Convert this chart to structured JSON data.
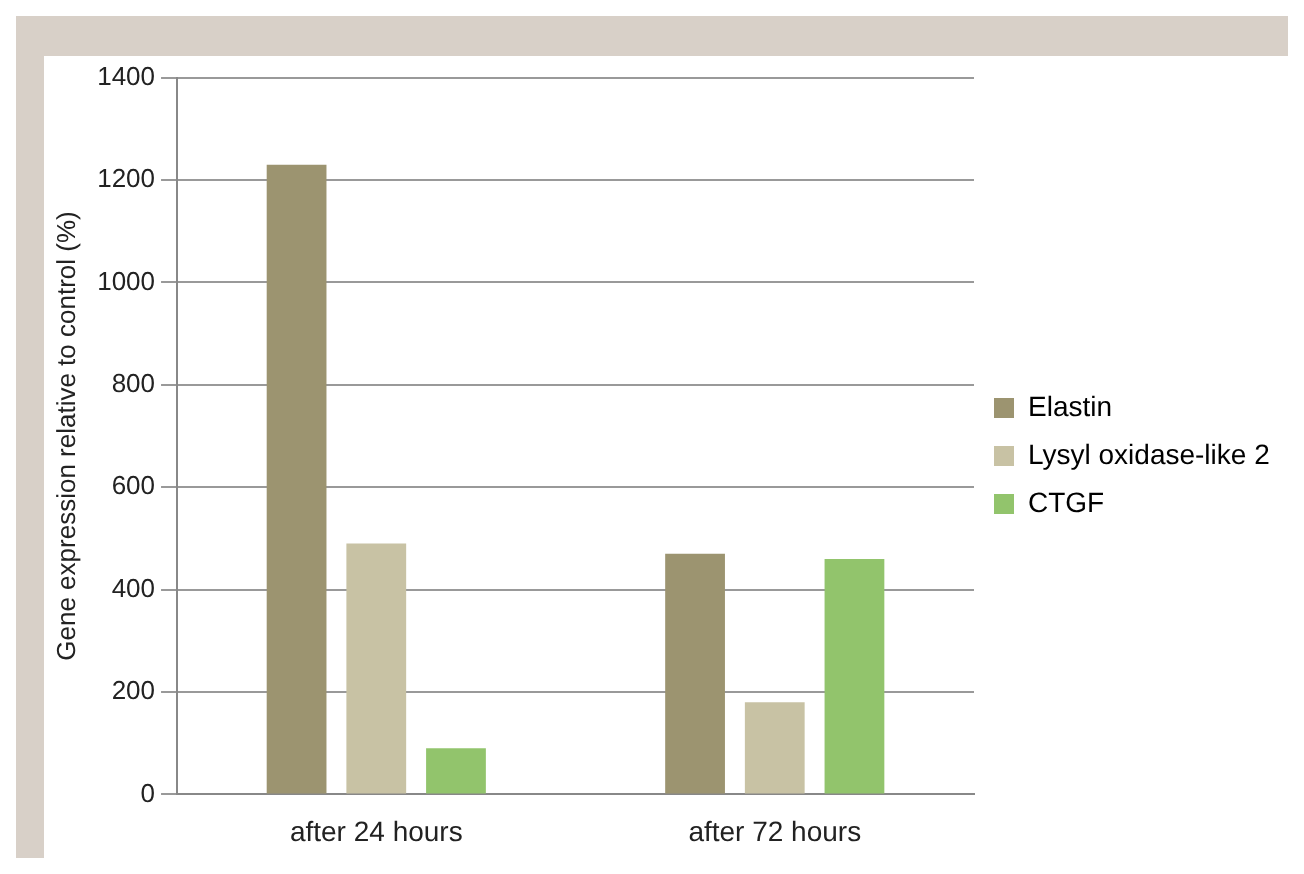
{
  "chart_data": {
    "type": "bar",
    "ylabel": "Gene expression relative to control (%)",
    "categories": [
      "after 24 hours",
      "after 72 hours"
    ],
    "series": [
      {
        "name": "Elastin",
        "color": "#9c9470",
        "values": [
          1230,
          470
        ]
      },
      {
        "name": "Lysyl oxidase-like 2",
        "color": "#c8c2a4",
        "values": [
          490,
          180
        ]
      },
      {
        "name": "CTGF",
        "color": "#92c46c",
        "values": [
          90,
          460
        ]
      }
    ],
    "ylim": [
      0,
      1400
    ],
    "yticks": [
      0,
      200,
      400,
      600,
      800,
      1000,
      1200,
      1400
    ],
    "grid": "y",
    "legend": "right"
  }
}
